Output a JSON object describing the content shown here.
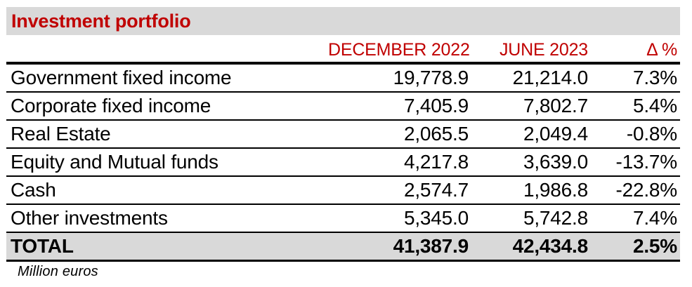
{
  "title": "Investment portfolio",
  "unit_note": "Million euros",
  "colors": {
    "accent_red": "#C00000",
    "title_bg": "#D9D9D9",
    "total_bg": "#D9D9D9",
    "rule_black": "#000000"
  },
  "table": {
    "columns": [
      "",
      "DECEMBER 2022",
      "JUNE 2023",
      "Δ %"
    ],
    "rows": [
      {
        "label": "Government fixed income",
        "dec_2022": "19,778.9",
        "jun_2023": "21,214.0",
        "delta_pct": "7.3%"
      },
      {
        "label": "Corporate fixed income",
        "dec_2022": "7,405.9",
        "jun_2023": "7,802.7",
        "delta_pct": "5.4%"
      },
      {
        "label": "Real Estate",
        "dec_2022": "2,065.5",
        "jun_2023": "2,049.4",
        "delta_pct": "-0.8%"
      },
      {
        "label": "Equity and Mutual funds",
        "dec_2022": "4,217.8",
        "jun_2023": "3,639.0",
        "delta_pct": "-13.7%"
      },
      {
        "label": "Cash",
        "dec_2022": "2,574.7",
        "jun_2023": "1,986.8",
        "delta_pct": "-22.8%"
      },
      {
        "label": "Other investments",
        "dec_2022": "5,345.0",
        "jun_2023": "5,742.8",
        "delta_pct": "7.4%"
      }
    ],
    "total": {
      "label": "TOTAL",
      "dec_2022": "41,387.9",
      "jun_2023": "42,434.8",
      "delta_pct": "2.5%"
    }
  }
}
